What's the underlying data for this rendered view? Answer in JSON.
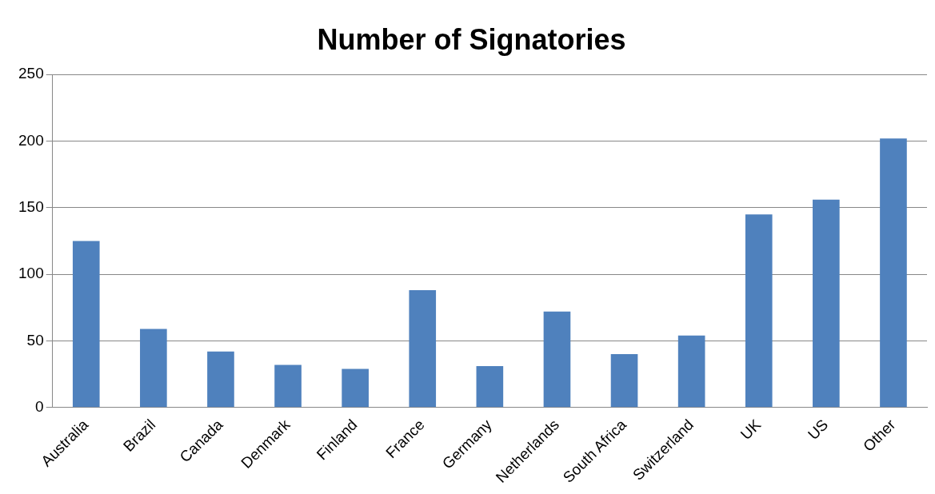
{
  "chart_data": {
    "type": "bar",
    "title": "Number of Signatories",
    "categories": [
      "Australia",
      "Brazil",
      "Canada",
      "Denmark",
      "Finland",
      "France",
      "Germany",
      "Netherlands",
      "South Africa",
      "Switzerland",
      "UK",
      "US",
      "Other"
    ],
    "values": [
      125,
      59,
      42,
      32,
      29,
      88,
      31,
      72,
      40,
      54,
      145,
      156,
      202
    ],
    "color": "#4f81bd",
    "ylim": [
      0,
      250
    ],
    "yticks": [
      0,
      50,
      100,
      150,
      200,
      250
    ],
    "grid": "y"
  }
}
